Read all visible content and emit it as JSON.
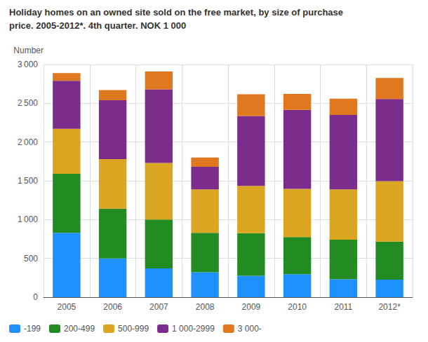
{
  "chart_data": {
    "type": "bar",
    "stacked": true,
    "title": "Holiday homes on an owned site sold on the free market, by size of purchase",
    "subtitle": "price. 2005-2012*. 4th quarter. NOK 1 000",
    "ylabel": "Number",
    "categories": [
      "2005",
      "2006",
      "2007",
      "2008",
      "2009",
      "2010",
      "2011",
      "2012*"
    ],
    "series": [
      {
        "name": "-199",
        "color": "#1e90ff",
        "values": [
          830,
          500,
          370,
          320,
          275,
          295,
          230,
          225
        ]
      },
      {
        "name": "200-499",
        "color": "#228b22",
        "values": [
          760,
          640,
          630,
          510,
          550,
          480,
          510,
          490
        ]
      },
      {
        "name": "500-999",
        "color": "#daa520",
        "values": [
          580,
          640,
          730,
          560,
          610,
          620,
          650,
          780
        ]
      },
      {
        "name": "1 000-2999",
        "color": "#7b2d8b",
        "values": [
          620,
          760,
          950,
          290,
          900,
          1020,
          960,
          1060
        ]
      },
      {
        "name": "3 000-",
        "color": "#e07820",
        "values": [
          100,
          130,
          230,
          120,
          280,
          205,
          210,
          270
        ]
      }
    ],
    "ylim": [
      0,
      3000
    ],
    "yticks": [
      0,
      500,
      {
        "value": 1000,
        "label": "1 000"
      },
      {
        "value": 1500,
        "label": "1 500"
      },
      {
        "value": 2000,
        "label": "2 000"
      },
      {
        "value": 2500,
        "label": "2 500"
      },
      {
        "value": 3000,
        "label": "3 000"
      }
    ],
    "grid": true,
    "legend": "lower left"
  }
}
